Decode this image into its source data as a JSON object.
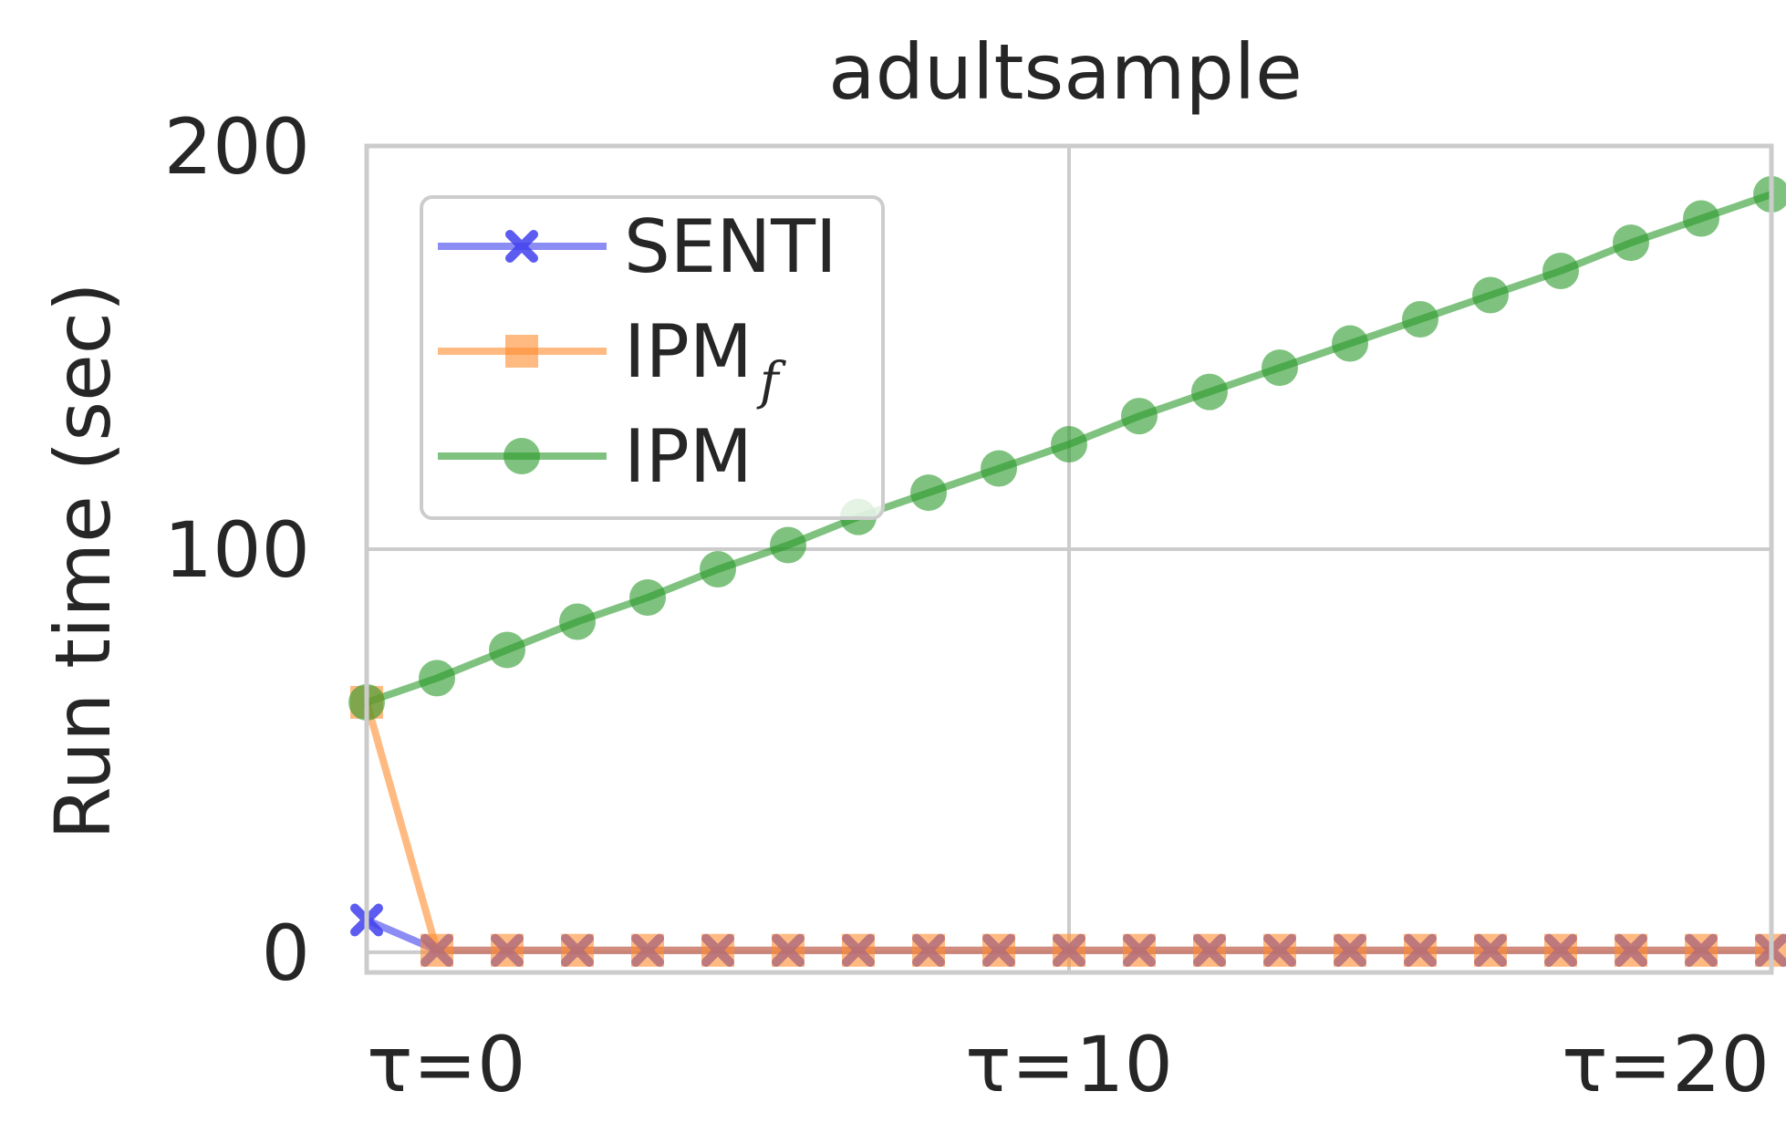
{
  "chart_data": {
    "type": "line",
    "title": "adultsample",
    "xlabel": "",
    "ylabel": "Run time (sec)",
    "x": [
      0,
      1,
      2,
      3,
      4,
      5,
      6,
      7,
      8,
      9,
      10,
      11,
      12,
      13,
      14,
      15,
      16,
      17,
      18,
      19,
      20
    ],
    "xlim": [
      0,
      20
    ],
    "ylim": [
      -5,
      200
    ],
    "x_ticks": [
      {
        "value": 0,
        "label": "τ=0"
      },
      {
        "value": 10,
        "label": "τ=10"
      },
      {
        "value": 20,
        "label": "τ=20"
      }
    ],
    "y_ticks": [
      {
        "value": 0,
        "label": "0"
      },
      {
        "value": 100,
        "label": "100"
      },
      {
        "value": 200,
        "label": "200"
      }
    ],
    "grid": true,
    "legend_position": "upper-left",
    "series": [
      {
        "name": "SENTI",
        "color": "#4040ee",
        "marker": "x",
        "values": [
          8,
          0.5,
          0.5,
          0.5,
          0.5,
          0.5,
          0.5,
          0.5,
          0.5,
          0.5,
          0.5,
          0.5,
          0.5,
          0.5,
          0.5,
          0.5,
          0.5,
          0.5,
          0.5,
          0.5,
          0.5
        ]
      },
      {
        "name": "IPM",
        "name_subscript": "f",
        "color": "#ff8c2e",
        "marker": "square",
        "values": [
          62,
          0.5,
          0.5,
          0.5,
          0.5,
          0.5,
          0.5,
          0.5,
          0.5,
          0.5,
          0.5,
          0.5,
          0.5,
          0.5,
          0.5,
          0.5,
          0.5,
          0.5,
          0.5,
          0.5,
          0.5
        ]
      },
      {
        "name": "IPM",
        "color": "#2a9a2a",
        "marker": "circle",
        "values": [
          62,
          68,
          75,
          82,
          88,
          95,
          101,
          108,
          114,
          120,
          126,
          133,
          139,
          145,
          151,
          157,
          163,
          169,
          176,
          182,
          188
        ]
      }
    ]
  }
}
